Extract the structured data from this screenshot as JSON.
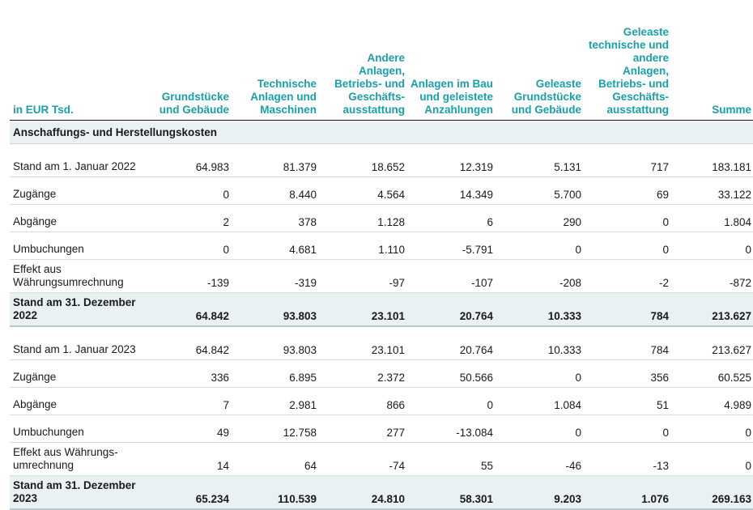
{
  "header": {
    "unit_label": "in EUR Tsd.",
    "columns": [
      "Grundstücke und Gebäude",
      "Technische Anlagen und Maschinen",
      "Andere Anlagen, Betriebs- und Geschäfts-ausstattung",
      "Anlagen im Bau und geleistete Anzahlungen",
      "Geleaste Grundstücke und Gebäude",
      "Geleaste technische und andere Anlagen, Betriebs- und Geschäfts-ausstattung",
      "Summe"
    ]
  },
  "section_title": "Anschaffungs- und Herstellungskosten",
  "rows": [
    {
      "label": "Stand am 1. Januar 2022",
      "values": [
        "64.983",
        "81.379",
        "18.652",
        "12.319",
        "5.131",
        "717",
        "183.181"
      ]
    },
    {
      "label": "Zugänge",
      "values": [
        "0",
        "8.440",
        "4.564",
        "14.349",
        "5.700",
        "69",
        "33.122"
      ]
    },
    {
      "label": "Abgänge",
      "values": [
        "2",
        "378",
        "1.128",
        "6",
        "290",
        "0",
        "1.804"
      ]
    },
    {
      "label": "Umbuchungen",
      "values": [
        "0",
        "4.681",
        "1.110",
        "-5.791",
        "0",
        "0",
        "0"
      ]
    },
    {
      "label": "Effekt aus Währungsumrechnung",
      "values": [
        "-139",
        "-319",
        "-97",
        "-107",
        "-208",
        "-2",
        "-872"
      ]
    },
    {
      "label": "Stand am 31. Dezember 2022",
      "values": [
        "64.842",
        "93.803",
        "23.101",
        "20.764",
        "10.333",
        "784",
        "213.627"
      ]
    },
    {
      "label": "Stand am 1. Januar 2023",
      "values": [
        "64.842",
        "93.803",
        "23.101",
        "20.764",
        "10.333",
        "784",
        "213.627"
      ]
    },
    {
      "label": "Zugänge",
      "values": [
        "336",
        "6.895",
        "2.372",
        "50.566",
        "0",
        "356",
        "60.525"
      ]
    },
    {
      "label": "Abgänge",
      "values": [
        "7",
        "2.981",
        "866",
        "0",
        "1.084",
        "51",
        "4.989"
      ]
    },
    {
      "label": "Umbuchungen",
      "values": [
        "49",
        "12.758",
        "277",
        "-13.084",
        "0",
        "0",
        "0"
      ]
    },
    {
      "label": "Effekt aus Währungs-umrechnung",
      "values": [
        "14",
        "64",
        "-74",
        "55",
        "-46",
        "-13",
        "0"
      ]
    },
    {
      "label": "Stand am 31. Dezember 2023",
      "values": [
        "65.234",
        "110.539",
        "24.810",
        "58.301",
        "9.203",
        "1.076",
        "269.163"
      ]
    }
  ]
}
